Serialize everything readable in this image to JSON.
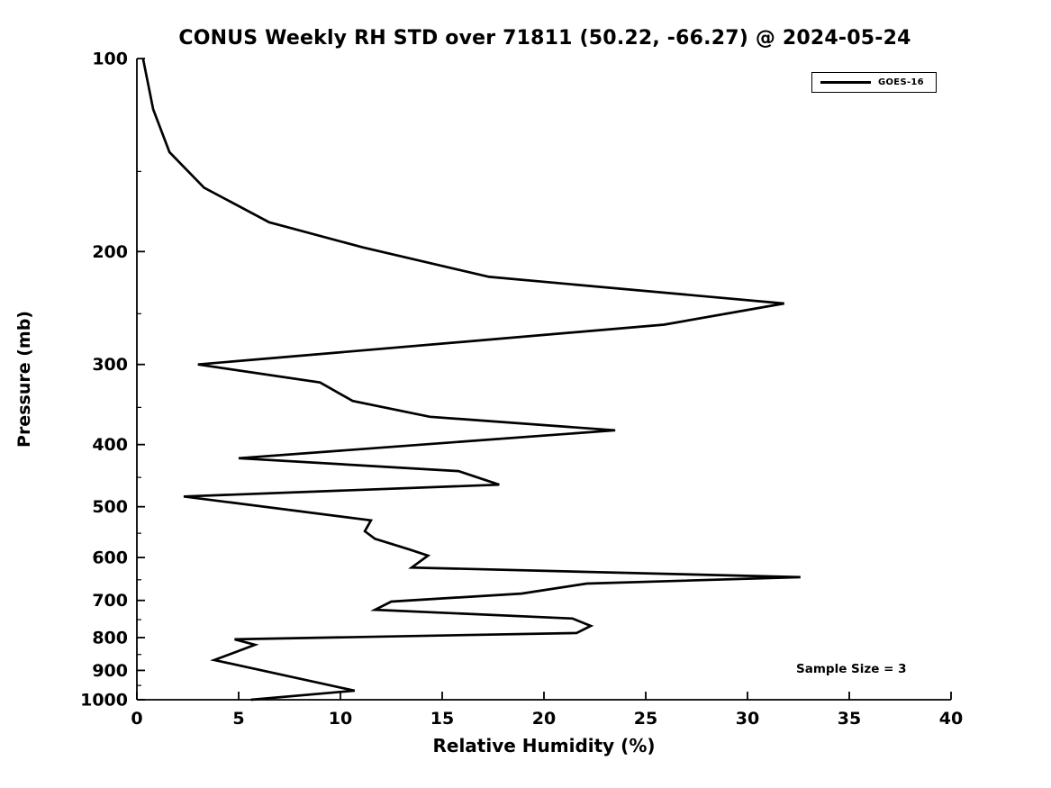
{
  "title": "CONUS Weekly RH STD over 71811 (50.22, -66.27) @ 2024-05-24",
  "legend": {
    "entries": [
      {
        "label": "GOES-16",
        "color": "#000000"
      }
    ]
  },
  "annotation": "Sample Size = 3",
  "colors": {
    "line": "#000000",
    "axis": "#000000",
    "background": "#ffffff"
  },
  "chart_data": {
    "type": "line",
    "title": "CONUS Weekly RH STD over 71811 (50.22, -66.27) @ 2024-05-24",
    "xlabel": "Relative Humidity (%)",
    "ylabel": "Pressure (mb)",
    "xlim": [
      0,
      40
    ],
    "ylim": [
      100,
      1000
    ],
    "yscale": "log",
    "y_inverted": true,
    "grid": false,
    "legend_position": "upper right",
    "xticks": [
      0,
      5,
      10,
      15,
      20,
      25,
      30,
      35,
      40
    ],
    "yticks": [
      100,
      200,
      300,
      400,
      500,
      600,
      700,
      800,
      900,
      1000
    ],
    "yticks_minor": [
      150,
      250,
      350,
      450,
      550,
      650,
      750,
      850,
      950
    ],
    "annotations": [
      {
        "text": "Sample Size = 3",
        "rh_pct": 32.5,
        "pressure_mb": 875
      }
    ],
    "series": [
      {
        "name": "GOES-16",
        "color": "#000000",
        "points_pressure_rh": [
          [
            100,
            0.3
          ],
          [
            120,
            0.8
          ],
          [
            140,
            1.6
          ],
          [
            159,
            3.3
          ],
          [
            180,
            6.5
          ],
          [
            197,
            11.1
          ],
          [
            219,
            17.3
          ],
          [
            241,
            31.8
          ],
          [
            260,
            25.9
          ],
          [
            300,
            3.0
          ],
          [
            320,
            9.0
          ],
          [
            342,
            10.6
          ],
          [
            362,
            14.4
          ],
          [
            380,
            23.5
          ],
          [
            420,
            5.0
          ],
          [
            440,
            15.8
          ],
          [
            462,
            17.8
          ],
          [
            482,
            2.3
          ],
          [
            525,
            11.5
          ],
          [
            546,
            11.2
          ],
          [
            561,
            11.7
          ],
          [
            583,
            13.4
          ],
          [
            596,
            14.3
          ],
          [
            622,
            13.5
          ],
          [
            644,
            32.6
          ],
          [
            659,
            22.1
          ],
          [
            683,
            18.9
          ],
          [
            703,
            12.5
          ],
          [
            724,
            11.7
          ],
          [
            747,
            21.4
          ],
          [
            767,
            22.3
          ],
          [
            787,
            21.6
          ],
          [
            805,
            4.8
          ],
          [
            821,
            5.8
          ],
          [
            867,
            3.8
          ],
          [
            968,
            10.7
          ],
          [
            1000,
            5.6
          ]
        ]
      }
    ]
  }
}
